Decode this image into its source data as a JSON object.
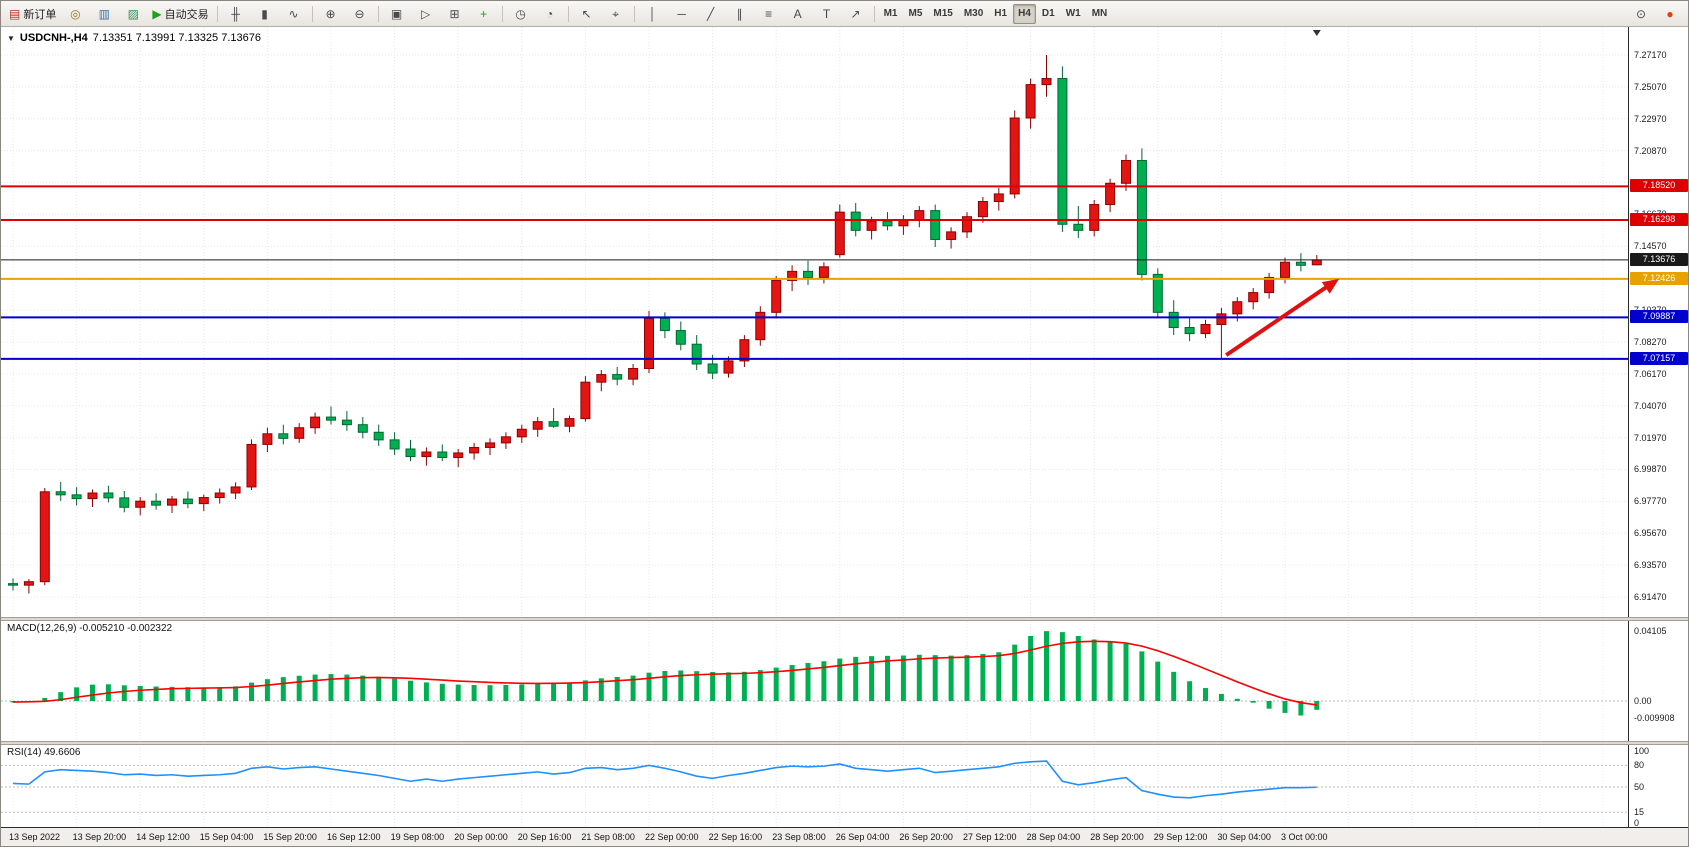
{
  "toolbar": {
    "items": [
      {
        "type": "labeled",
        "name": "new-order",
        "icon": "candlestick-plus-icon",
        "glyph": "▤",
        "glyph_color": "#b03020",
        "label": "新订单"
      },
      {
        "type": "icon",
        "name": "compass",
        "icon": "compass-icon",
        "glyph": "◎",
        "glyph_color": "#9a7020"
      },
      {
        "type": "icon",
        "name": "market-watch",
        "icon": "market-watch-icon",
        "glyph": "▥",
        "glyph_color": "#3a6ea5"
      },
      {
        "type": "icon",
        "name": "data-window",
        "icon": "data-window-icon",
        "glyph": "▨",
        "glyph_color": "#3a8a5a"
      },
      {
        "type": "labeled",
        "name": "auto-trading",
        "icon": "play-icon",
        "glyph": "▶",
        "glyph_color": "#1ca31c",
        "label": "自动交易"
      },
      {
        "type": "sep"
      },
      {
        "type": "icon",
        "name": "bar-chart-type",
        "icon": "bar-chart-icon",
        "glyph": "╫"
      },
      {
        "type": "icon",
        "name": "candlestick-type",
        "icon": "candlestick-icon",
        "glyph": "▮"
      },
      {
        "type": "icon",
        "name": "line-chart-type",
        "icon": "line-chart-icon",
        "glyph": "∿"
      },
      {
        "type": "sep"
      },
      {
        "type": "icon",
        "name": "zoom-in",
        "icon": "zoom-in-icon",
        "glyph": "⊕"
      },
      {
        "type": "icon",
        "name": "zoom-out",
        "icon": "zoom-out-icon",
        "glyph": "⊖"
      },
      {
        "type": "sep"
      },
      {
        "type": "icon",
        "name": "auto-scroll",
        "icon": "auto-scroll-icon",
        "glyph": "▣"
      },
      {
        "type": "icon",
        "name": "chart-shift",
        "icon": "chart-shift-icon",
        "glyph": "▷"
      },
      {
        "type": "icon",
        "name": "tile-windows",
        "icon": "tile-windows-icon",
        "glyph": "⊞"
      },
      {
        "type": "icon",
        "name": "new-chart",
        "icon": "new-chart-icon",
        "glyph": "+",
        "glyph_color": "#1ca31c"
      },
      {
        "type": "sep"
      },
      {
        "type": "icon",
        "name": "period-up",
        "icon": "clock-icon",
        "glyph": "◷"
      },
      {
        "type": "icon",
        "name": "period-down",
        "icon": "clock-back-icon",
        "glyph": "◔"
      },
      {
        "type": "sep"
      },
      {
        "type": "icon",
        "name": "cursor",
        "icon": "cursor-icon",
        "glyph": "↖"
      },
      {
        "type": "icon",
        "name": "crosshair",
        "icon": "crosshair-icon",
        "glyph": "⌖"
      },
      {
        "type": "sep"
      },
      {
        "type": "icon",
        "name": "vertical-line",
        "icon": "vertical-line-icon",
        "glyph": "│"
      },
      {
        "type": "icon",
        "name": "horizontal-line",
        "icon": "horizontal-line-icon",
        "glyph": "─"
      },
      {
        "type": "icon",
        "name": "trendline",
        "icon": "trendline-icon",
        "glyph": "╱"
      },
      {
        "type": "icon",
        "name": "channel",
        "icon": "channel-icon",
        "glyph": "∥"
      },
      {
        "type": "icon",
        "name": "fibonacci",
        "icon": "fibonacci-icon",
        "glyph": "≡"
      },
      {
        "type": "icon",
        "name": "text",
        "icon": "text-icon",
        "glyph": "A"
      },
      {
        "type": "icon",
        "name": "text-label",
        "icon": "text-label-icon",
        "glyph": "T"
      },
      {
        "type": "icon",
        "name": "arrows",
        "icon": "arrow-tool-icon",
        "glyph": "↗"
      },
      {
        "type": "sep"
      },
      {
        "type": "timeframes"
      },
      {
        "type": "spacer"
      },
      {
        "type": "icon",
        "name": "search",
        "icon": "magnifier-icon",
        "glyph": "⊙"
      },
      {
        "type": "icon",
        "name": "notifications",
        "icon": "red-dot-icon",
        "glyph": "●",
        "glyph_color": "#e04300"
      }
    ],
    "timeframes": [
      "M1",
      "M5",
      "M15",
      "M30",
      "H1",
      "H4",
      "D1",
      "W1",
      "MN"
    ],
    "active_timeframe": "H4"
  },
  "header": {
    "symbol": "USDCNH-,H4",
    "ohlc": "7.13351 7.13991 7.13325 7.13676"
  },
  "chart_data": {
    "type": "candlestick",
    "symbol": "USDCNH-",
    "timeframe": "H4",
    "current_bar": {
      "open": "7.13351",
      "high": "7.13991",
      "low": "7.13325",
      "close": "7.13676"
    },
    "style": {
      "up_fill": "#e31414",
      "up_border": "#8f0000",
      "down_fill": "#00b050",
      "down_border": "#006633",
      "grid": "#e7e7e7"
    },
    "price_axis": {
      "max": "7.2717",
      "min": "6.9147",
      "tick_step": "0.021",
      "ticks": [
        "7.27170",
        "7.25070",
        "7.22970",
        "7.20870",
        "7.18770",
        "7.16670",
        "7.14570",
        "7.12470",
        "7.10370",
        "7.08270",
        "7.06170",
        "7.04070",
        "7.01970",
        "6.99870",
        "6.97770",
        "6.95670",
        "6.93570",
        "6.91470"
      ]
    },
    "time_labels": [
      "13 Sep 2022",
      "13 Sep 20:00",
      "14 Sep 12:00",
      "15 Sep 04:00",
      "15 Sep 20:00",
      "16 Sep 12:00",
      "19 Sep 08:00",
      "20 Sep 00:00",
      "20 Sep 16:00",
      "21 Sep 08:00",
      "22 Sep 00:00",
      "22 Sep 16:00",
      "23 Sep 08:00",
      "26 Sep 04:00",
      "26 Sep 20:00",
      "27 Sep 12:00",
      "28 Sep 04:00",
      "28 Sep 20:00",
      "29 Sep 12:00",
      "30 Sep 04:00",
      "3 Oct 00:00"
    ],
    "candles": [
      [
        6.9235,
        6.927,
        6.919,
        6.9225
      ],
      [
        6.9225,
        6.9265,
        6.917,
        6.9248
      ],
      [
        6.9248,
        6.9865,
        6.9225,
        6.984
      ],
      [
        6.984,
        6.9905,
        6.978,
        6.982
      ],
      [
        6.982,
        6.987,
        6.975,
        6.9795
      ],
      [
        6.9795,
        6.9855,
        6.974,
        6.9832
      ],
      [
        6.9832,
        6.988,
        6.977,
        6.98
      ],
      [
        6.98,
        6.9845,
        6.9705,
        6.9738
      ],
      [
        6.9738,
        6.9805,
        6.9685,
        6.9778
      ],
      [
        6.9778,
        6.983,
        6.9722,
        6.9752
      ],
      [
        6.9752,
        6.9812,
        6.97,
        6.9792
      ],
      [
        6.9792,
        6.9842,
        6.9732,
        6.9762
      ],
      [
        6.9762,
        6.9822,
        6.9712,
        6.9802
      ],
      [
        6.9802,
        6.9862,
        6.9762,
        6.9832
      ],
      [
        6.9832,
        6.9902,
        6.9792,
        6.9872
      ],
      [
        6.9872,
        7.0185,
        6.9852,
        7.0152
      ],
      [
        7.0152,
        7.0262,
        7.0102,
        7.0222
      ],
      [
        7.0222,
        7.0282,
        7.0152,
        7.0192
      ],
      [
        7.0192,
        7.0292,
        7.0162,
        7.0262
      ],
      [
        7.0262,
        7.0362,
        7.0222,
        7.0332
      ],
      [
        7.0332,
        7.0402,
        7.0282,
        7.0312
      ],
      [
        7.0312,
        7.0372,
        7.0242,
        7.0282
      ],
      [
        7.0282,
        7.0332,
        7.0192,
        7.0232
      ],
      [
        7.0232,
        7.0282,
        7.0142,
        7.0182
      ],
      [
        7.0182,
        7.0232,
        7.0082,
        7.0122
      ],
      [
        7.0122,
        7.0182,
        7.0042,
        7.0072
      ],
      [
        7.0072,
        7.0132,
        7.0012,
        7.0102
      ],
      [
        7.0102,
        7.0152,
        7.0042,
        7.0066
      ],
      [
        7.0066,
        7.0122,
        7.0002,
        7.0096
      ],
      [
        7.0096,
        7.0162,
        7.0052,
        7.0132
      ],
      [
        7.0132,
        7.0192,
        7.0082,
        7.0162
      ],
      [
        7.0162,
        7.0232,
        7.0122,
        7.0202
      ],
      [
        7.0202,
        7.0282,
        7.0162,
        7.0252
      ],
      [
        7.0252,
        7.0332,
        7.0202,
        7.0302
      ],
      [
        7.0302,
        7.0392,
        7.0262,
        7.0272
      ],
      [
        7.0272,
        7.0342,
        7.0232,
        7.0322
      ],
      [
        7.0322,
        7.0602,
        7.0302,
        7.0562
      ],
      [
        7.0562,
        7.0642,
        7.0502,
        7.0612
      ],
      [
        7.0612,
        7.0662,
        7.0542,
        7.0582
      ],
      [
        7.0582,
        7.0682,
        7.0542,
        7.0652
      ],
      [
        7.0652,
        7.1032,
        7.0622,
        7.0982
      ],
      [
        7.0982,
        7.1022,
        7.0852,
        7.0902
      ],
      [
        7.0902,
        7.0962,
        7.0772,
        7.0812
      ],
      [
        7.0812,
        7.0872,
        7.0642,
        7.0682
      ],
      [
        7.0682,
        7.0742,
        7.0582,
        7.0622
      ],
      [
        7.0622,
        7.0732,
        7.0592,
        7.0702
      ],
      [
        7.0702,
        7.0872,
        7.0662,
        7.0842
      ],
      [
        7.0842,
        7.1062,
        7.0802,
        7.1022
      ],
      [
        7.1022,
        7.1262,
        7.0982,
        7.1232
      ],
      [
        7.1232,
        7.1332,
        7.1162,
        7.1292
      ],
      [
        7.1292,
        7.1362,
        7.1202,
        7.1252
      ],
      [
        7.1252,
        7.1352,
        7.1212,
        7.1322
      ],
      [
        7.1402,
        7.1732,
        7.1382,
        7.1682
      ],
      [
        7.1682,
        7.1742,
        7.1522,
        7.1562
      ],
      [
        7.1562,
        7.1652,
        7.1502,
        7.1622
      ],
      [
        7.1622,
        7.1682,
        7.1562,
        7.1592
      ],
      [
        7.1592,
        7.1662,
        7.1532,
        7.1632
      ],
      [
        7.1632,
        7.1722,
        7.1582,
        7.1692
      ],
      [
        7.1692,
        7.1732,
        7.1452,
        7.1502
      ],
      [
        7.1502,
        7.1582,
        7.1442,
        7.1552
      ],
      [
        7.1552,
        7.1682,
        7.1512,
        7.1652
      ],
      [
        7.1652,
        7.1782,
        7.1612,
        7.1752
      ],
      [
        7.1752,
        7.1842,
        7.1692,
        7.1802
      ],
      [
        7.1802,
        7.2352,
        7.1772,
        7.2302
      ],
      [
        7.2302,
        7.2562,
        7.2232,
        7.2522
      ],
      [
        7.2522,
        7.2717,
        7.2442,
        7.2562
      ],
      [
        7.2562,
        7.2642,
        7.1552,
        7.1602
      ],
      [
        7.1602,
        7.1722,
        7.1512,
        7.1562
      ],
      [
        7.1562,
        7.1762,
        7.1522,
        7.1732
      ],
      [
        7.1732,
        7.1902,
        7.1682,
        7.1872
      ],
      [
        7.1872,
        7.2062,
        7.1822,
        7.2022
      ],
      [
        7.2022,
        7.2102,
        7.1232,
        7.1272
      ],
      [
        7.1272,
        7.1312,
        7.0982,
        7.1022
      ],
      [
        7.1022,
        7.1102,
        7.0872,
        7.0922
      ],
      [
        7.0922,
        7.0992,
        7.0832,
        7.0882
      ],
      [
        7.0882,
        7.0972,
        7.0852,
        7.0942
      ],
      [
        7.0942,
        7.1052,
        7.0716,
        7.1012
      ],
      [
        7.1012,
        7.1122,
        7.0962,
        7.1092
      ],
      [
        7.1092,
        7.1182,
        7.1042,
        7.1152
      ],
      [
        7.1152,
        7.1282,
        7.1112,
        7.1252
      ],
      [
        7.1252,
        7.1382,
        7.1212,
        7.1352
      ],
      [
        7.1352,
        7.1412,
        7.1292,
        7.1332
      ],
      [
        7.13351,
        7.13991,
        7.13325,
        7.13676
      ]
    ],
    "hlines": [
      {
        "price": "7.18520",
        "color": "#dd0000"
      },
      {
        "price": "7.16298",
        "color": "#dd0000"
      },
      {
        "price": "7.12426",
        "color": "#e8a200"
      },
      {
        "price": "7.09887",
        "color": "#0000cc"
      },
      {
        "price": "7.07157",
        "color": "#0000cc"
      }
    ],
    "current_price": {
      "price": "7.13676",
      "color": "#1a1a1a"
    },
    "arrow": {
      "start_candle": 76.3,
      "start_price": "7.0740",
      "end_candle": 83.4,
      "end_price": "7.1242",
      "color": "#e01010"
    },
    "indicators": {
      "macd": {
        "label": "MACD(12,26,9)",
        "values": "-0.005210 -0.002322",
        "axis": [
          "0.04105",
          "0.00",
          "-0.009908"
        ],
        "hist_color": "#00b050",
        "signal_color": "#ff0000",
        "histogram": [
          -0.0008,
          -0.0004,
          0.0018,
          0.0052,
          0.008,
          0.0096,
          0.0098,
          0.0092,
          0.0088,
          0.0085,
          0.0083,
          0.0081,
          0.0079,
          0.0081,
          0.0086,
          0.0108,
          0.0128,
          0.014,
          0.0148,
          0.0155,
          0.0158,
          0.0155,
          0.0149,
          0.0141,
          0.0131,
          0.0119,
          0.0109,
          0.0101,
          0.0096,
          0.0094,
          0.0093,
          0.0094,
          0.0097,
          0.0101,
          0.0105,
          0.0109,
          0.0121,
          0.0133,
          0.0141,
          0.0149,
          0.0166,
          0.0176,
          0.0179,
          0.0175,
          0.017,
          0.0168,
          0.0171,
          0.0181,
          0.0196,
          0.0211,
          0.0223,
          0.0233,
          0.0249,
          0.0259,
          0.0263,
          0.0265,
          0.0267,
          0.0271,
          0.0269,
          0.0266,
          0.0269,
          0.0276,
          0.0286,
          0.0331,
          0.0381,
          0.041,
          0.0404,
          0.0381,
          0.0361,
          0.0346,
          0.0336,
          0.0291,
          0.0231,
          0.0171,
          0.0116,
          0.0076,
          0.0041,
          0.0013,
          -0.001,
          -0.0045,
          -0.007,
          -0.0085,
          -0.0052
        ],
        "signal": [
          -0.0006,
          -0.0005,
          -0.0002,
          0.0008,
          0.0022,
          0.0035,
          0.0047,
          0.0056,
          0.0063,
          0.0068,
          0.0072,
          0.0074,
          0.0076,
          0.0077,
          0.0079,
          0.0085,
          0.0093,
          0.0103,
          0.0112,
          0.012,
          0.0128,
          0.0133,
          0.0137,
          0.0138,
          0.0136,
          0.0133,
          0.0128,
          0.0123,
          0.0117,
          0.0113,
          0.0109,
          0.0106,
          0.0104,
          0.0103,
          0.0104,
          0.0105,
          0.0108,
          0.0113,
          0.0119,
          0.0125,
          0.0133,
          0.0142,
          0.0149,
          0.0154,
          0.0157,
          0.016,
          0.0162,
          0.0166,
          0.0172,
          0.0179,
          0.0188,
          0.0197,
          0.0208,
          0.0218,
          0.0227,
          0.0235,
          0.0241,
          0.0247,
          0.0252,
          0.0255,
          0.0257,
          0.0261,
          0.0266,
          0.0279,
          0.0299,
          0.0321,
          0.0338,
          0.0347,
          0.035,
          0.0348,
          0.034,
          0.0322,
          0.0295,
          0.0262,
          0.0226,
          0.0188,
          0.015,
          0.0112,
          0.0076,
          0.0042,
          0.0012,
          -0.001,
          -0.0023
        ]
      },
      "rsi": {
        "label": "RSI(14)",
        "value": "49.6606",
        "axis": [
          "100",
          "80",
          "50",
          "15",
          "0"
        ],
        "levels": [
          80,
          50,
          15
        ],
        "color": "#1e90ff",
        "values": [
          55,
          54,
          71,
          74,
          73,
          72,
          70,
          67,
          68,
          66,
          67,
          65,
          66,
          67,
          69,
          76,
          78,
          75,
          77,
          78,
          75,
          72,
          69,
          66,
          62,
          58,
          61,
          58,
          61,
          63,
          65,
          67,
          69,
          71,
          68,
          70,
          76,
          77,
          74,
          76,
          80,
          76,
          71,
          65,
          62,
          66,
          69,
          73,
          77,
          79,
          78,
          79,
          82,
          76,
          74,
          72,
          74,
          76,
          70,
          72,
          74,
          76,
          78,
          83,
          85,
          86,
          58,
          53,
          56,
          60,
          63,
          45,
          40,
          36,
          35,
          38,
          40,
          43,
          45,
          47,
          49,
          49,
          49.66
        ]
      }
    }
  }
}
